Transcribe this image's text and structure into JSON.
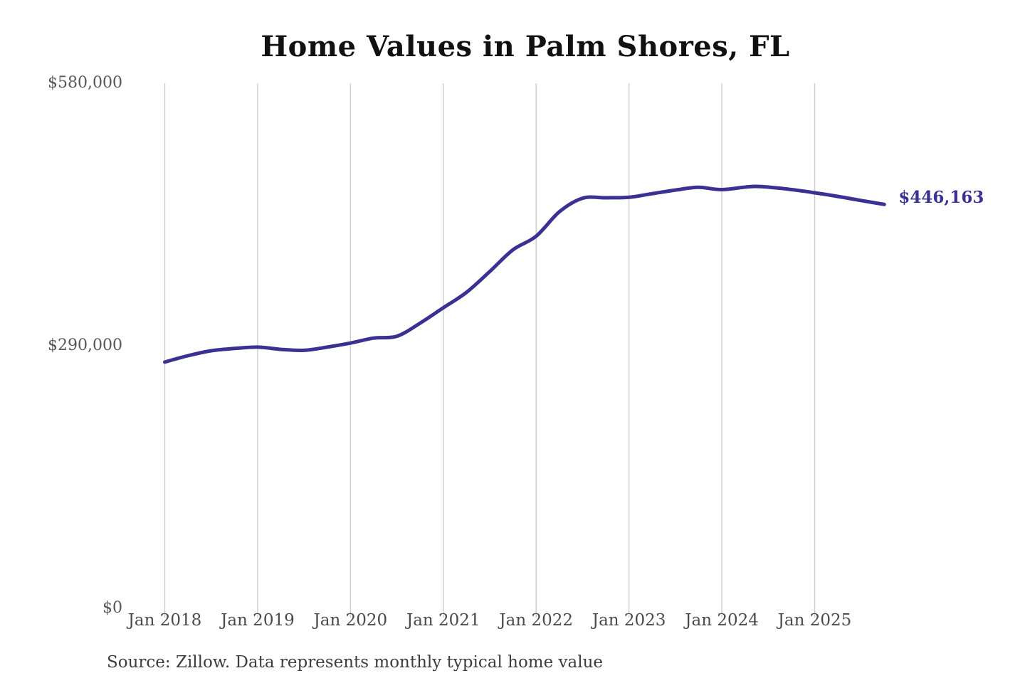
{
  "chart_data": {
    "type": "line",
    "title": "Home Values in Palm Shores, FL",
    "series_name": "Monthly typical home value",
    "x_ticks": [
      2018,
      2019,
      2020,
      2021,
      2022,
      2023,
      2024,
      2025
    ],
    "x_tick_labels": [
      "Jan 2018",
      "Jan 2019",
      "Jan 2020",
      "Jan 2021",
      "Jan 2022",
      "Jan 2023",
      "Jan 2024",
      "Jan 2025"
    ],
    "y_ticks": [
      0,
      290000,
      580000
    ],
    "y_tick_labels": [
      "$0",
      "$290,000",
      "$580,000"
    ],
    "ylim": [
      0,
      580000
    ],
    "xlim": [
      2018.0,
      2025.78
    ],
    "grid": "vertical-only",
    "legend_position": "none",
    "end_label": "$446,163",
    "latest_value": 446163,
    "line_color": "#3a3192",
    "gridline_color": "#cccccc",
    "points": [
      [
        2018.0,
        272000
      ],
      [
        2018.25,
        279000
      ],
      [
        2018.5,
        284500
      ],
      [
        2018.75,
        287000
      ],
      [
        2019.0,
        288500
      ],
      [
        2019.25,
        286000
      ],
      [
        2019.5,
        285000
      ],
      [
        2019.75,
        288500
      ],
      [
        2020.0,
        293000
      ],
      [
        2020.25,
        298500
      ],
      [
        2020.5,
        300500
      ],
      [
        2020.75,
        315000
      ],
      [
        2021.0,
        332000
      ],
      [
        2021.25,
        349000
      ],
      [
        2021.5,
        372000
      ],
      [
        2021.75,
        396000
      ],
      [
        2022.0,
        411000
      ],
      [
        2022.25,
        438000
      ],
      [
        2022.5,
        453000
      ],
      [
        2022.75,
        453500
      ],
      [
        2023.0,
        454000
      ],
      [
        2023.25,
        458000
      ],
      [
        2023.5,
        462000
      ],
      [
        2023.75,
        465000
      ],
      [
        2024.0,
        462500
      ],
      [
        2024.33,
        466000
      ],
      [
        2024.58,
        464500
      ],
      [
        2024.83,
        461500
      ],
      [
        2025.0,
        459000
      ],
      [
        2025.25,
        455000
      ],
      [
        2025.5,
        450500
      ],
      [
        2025.75,
        446163
      ]
    ],
    "source": "Source: Zillow. Data represents monthly typical home value"
  }
}
